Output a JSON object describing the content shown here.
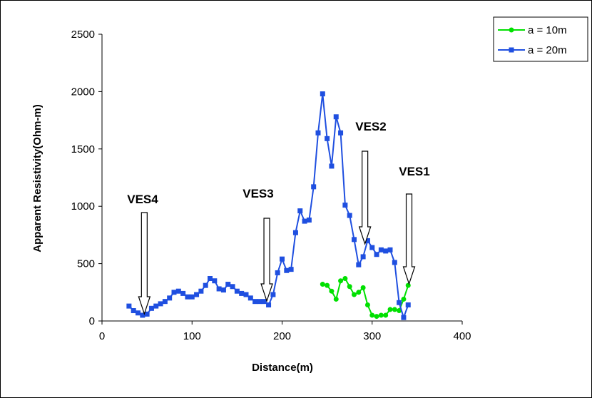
{
  "chart_data": {
    "type": "line",
    "xlabel": "Distance(m)",
    "ylabel": "Apparent Resistivity(Ohm-m)",
    "xlim": [
      0,
      400
    ],
    "ylim": [
      0,
      2500
    ],
    "xticks": [
      "0",
      "100",
      "200",
      "300",
      "400"
    ],
    "yticks": [
      "0",
      "500",
      "1000",
      "1500",
      "2000",
      "2500"
    ],
    "grid": false,
    "legend_position": "top-right, outside plot area",
    "series": [
      {
        "name": "a = 10m",
        "color": "#00e000",
        "marker": "circle",
        "points": [
          [
            245,
            320
          ],
          [
            250,
            310
          ],
          [
            255,
            260
          ],
          [
            260,
            190
          ],
          [
            265,
            350
          ],
          [
            270,
            370
          ],
          [
            275,
            300
          ],
          [
            280,
            230
          ],
          [
            285,
            250
          ],
          [
            290,
            290
          ],
          [
            295,
            140
          ],
          [
            300,
            50
          ],
          [
            305,
            40
          ],
          [
            310,
            50
          ],
          [
            315,
            50
          ],
          [
            320,
            100
          ],
          [
            325,
            100
          ],
          [
            330,
            90
          ],
          [
            335,
            190
          ],
          [
            340,
            310
          ]
        ]
      },
      {
        "name": "a = 20m",
        "color": "#1f4fe0",
        "marker": "square",
        "points": [
          [
            30,
            130
          ],
          [
            35,
            90
          ],
          [
            40,
            70
          ],
          [
            45,
            50
          ],
          [
            50,
            60
          ],
          [
            55,
            110
          ],
          [
            60,
            130
          ],
          [
            65,
            150
          ],
          [
            70,
            170
          ],
          [
            75,
            200
          ],
          [
            80,
            250
          ],
          [
            85,
            260
          ],
          [
            90,
            240
          ],
          [
            95,
            210
          ],
          [
            100,
            210
          ],
          [
            105,
            230
          ],
          [
            110,
            260
          ],
          [
            115,
            310
          ],
          [
            120,
            370
          ],
          [
            125,
            350
          ],
          [
            130,
            280
          ],
          [
            135,
            270
          ],
          [
            140,
            320
          ],
          [
            145,
            300
          ],
          [
            150,
            260
          ],
          [
            155,
            240
          ],
          [
            160,
            230
          ],
          [
            165,
            200
          ],
          [
            170,
            170
          ],
          [
            175,
            170
          ],
          [
            180,
            170
          ],
          [
            185,
            140
          ],
          [
            190,
            230
          ],
          [
            195,
            420
          ],
          [
            200,
            540
          ],
          [
            205,
            440
          ],
          [
            210,
            450
          ],
          [
            215,
            770
          ],
          [
            220,
            960
          ],
          [
            225,
            870
          ],
          [
            230,
            880
          ],
          [
            235,
            1170
          ],
          [
            240,
            1640
          ],
          [
            245,
            1980
          ],
          [
            250,
            1590
          ],
          [
            255,
            1350
          ],
          [
            260,
            1780
          ],
          [
            265,
            1640
          ],
          [
            270,
            1010
          ],
          [
            275,
            920
          ],
          [
            280,
            710
          ],
          [
            285,
            490
          ],
          [
            290,
            560
          ],
          [
            295,
            700
          ],
          [
            300,
            640
          ],
          [
            305,
            580
          ],
          [
            310,
            620
          ],
          [
            315,
            610
          ],
          [
            320,
            620
          ],
          [
            325,
            510
          ],
          [
            330,
            160
          ],
          [
            335,
            30
          ],
          [
            340,
            140
          ]
        ]
      }
    ],
    "annotations": [
      {
        "label": "VES4",
        "x": 47
      },
      {
        "label": "VES3",
        "x": 183
      },
      {
        "label": "VES2",
        "x": 292
      },
      {
        "label": "VES1",
        "x": 341
      }
    ]
  }
}
